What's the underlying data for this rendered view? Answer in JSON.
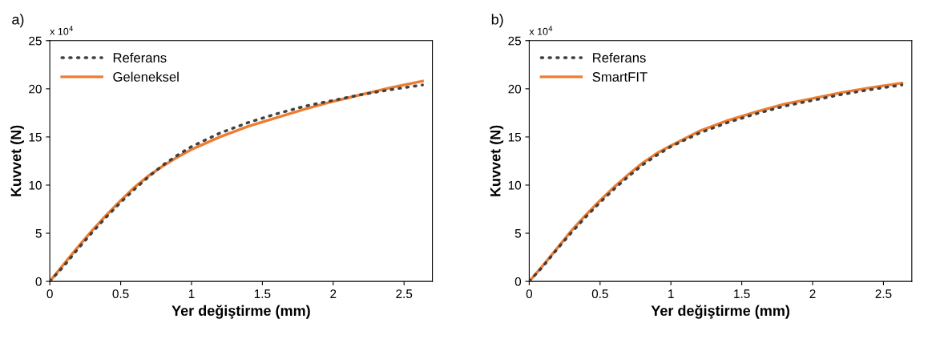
{
  "chart_data": [
    {
      "type": "line",
      "title": "a)",
      "xlabel": "Yer değiştirme (mm)",
      "ylabel": "Kuvvet (N)",
      "annotations": [
        "x 10$^{4}$"
      ],
      "xlim": [
        0,
        2.7
      ],
      "xticks": [
        0,
        0.5,
        1,
        1.5,
        2,
        2.5
      ],
      "ylim": [
        0,
        25
      ],
      "yticks": [
        0,
        5,
        10,
        15,
        20,
        25
      ],
      "grid": false,
      "legend": "top left",
      "x": [
        0,
        0.1,
        0.2,
        0.3,
        0.4,
        0.5,
        0.6,
        0.7,
        0.8,
        0.9,
        1.0,
        1.2,
        1.4,
        1.6,
        1.8,
        2.0,
        2.2,
        2.4,
        2.63
      ],
      "series": [
        {
          "name": "Referans",
          "color": "#404040",
          "line_style": "dotted",
          "values": [
            0,
            1.6,
            3.4,
            5.1,
            6.7,
            8.2,
            9.6,
            10.9,
            12.1,
            13.1,
            14.0,
            15.4,
            16.5,
            17.4,
            18.2,
            18.8,
            19.4,
            19.9,
            20.4
          ]
        },
        {
          "name": "Geleneksel",
          "color": "#ed7d31",
          "line_style": "solid",
          "values": [
            0,
            1.8,
            3.6,
            5.3,
            6.9,
            8.4,
            9.8,
            11.0,
            12.0,
            12.9,
            13.7,
            15.0,
            16.1,
            17.0,
            17.9,
            18.7,
            19.4,
            20.1,
            20.8
          ]
        }
      ]
    },
    {
      "type": "line",
      "title": "b)",
      "xlabel": "Yer değiştirme (mm)",
      "ylabel": "Kuvvet (N)",
      "annotations": [
        "x 10$^{4}$"
      ],
      "xlim": [
        0,
        2.7
      ],
      "xticks": [
        0,
        0.5,
        1,
        1.5,
        2,
        2.5
      ],
      "ylim": [
        0,
        25
      ],
      "yticks": [
        0,
        5,
        10,
        15,
        20,
        25
      ],
      "grid": false,
      "legend": "top left",
      "x": [
        0,
        0.1,
        0.2,
        0.3,
        0.4,
        0.5,
        0.6,
        0.7,
        0.8,
        0.9,
        1.0,
        1.2,
        1.4,
        1.6,
        1.8,
        2.0,
        2.2,
        2.4,
        2.63
      ],
      "series": [
        {
          "name": "Referans",
          "color": "#404040",
          "line_style": "dotted",
          "values": [
            0,
            1.6,
            3.4,
            5.1,
            6.7,
            8.2,
            9.6,
            10.9,
            12.1,
            13.1,
            14.0,
            15.4,
            16.5,
            17.4,
            18.2,
            18.8,
            19.4,
            19.9,
            20.4
          ]
        },
        {
          "name": "SmartFIT",
          "color": "#ed7d31",
          "line_style": "solid",
          "values": [
            0,
            1.7,
            3.5,
            5.3,
            6.9,
            8.4,
            9.8,
            11.1,
            12.3,
            13.3,
            14.1,
            15.6,
            16.7,
            17.6,
            18.4,
            19.0,
            19.6,
            20.1,
            20.6
          ]
        }
      ]
    }
  ]
}
